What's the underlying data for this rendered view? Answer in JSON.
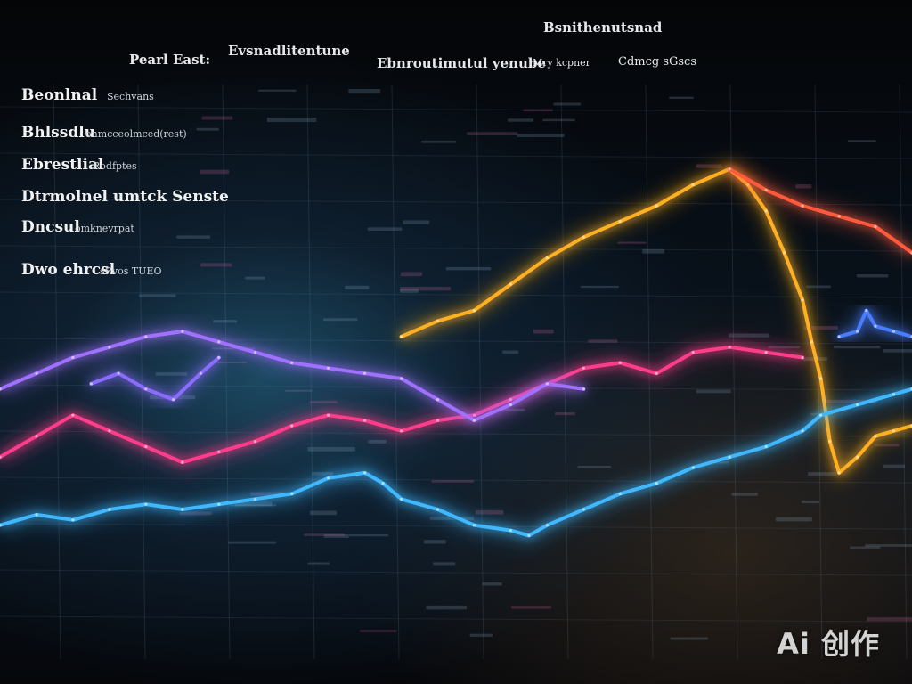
{
  "header": {
    "top_label": "Bsnithenutsnad",
    "left_title": "Pearl East:",
    "mid_title": "Evsnadlitentune",
    "subtitle": "Ebnroutimutul yenube",
    "subnote": "Mry kcpner",
    "right_note": "Cdmcg sGscs"
  },
  "row_labels": [
    {
      "main": "Beonlnal",
      "note": "Sechvans"
    },
    {
      "main": "Bhlssdlu",
      "note": "onmcceolmced(rest)"
    },
    {
      "main": "Ebrestlial",
      "note": "Rodfptes"
    },
    {
      "main": "Dtrmolnel umtck Senste",
      "note": ""
    },
    {
      "main": "Dncsul",
      "note": "omknevrpat"
    },
    {
      "main": "Dwo ehrcsl",
      "note": "sRvos TUEO"
    }
  ],
  "watermark": "Ai 创作",
  "chart_data": {
    "type": "line",
    "title": "",
    "xlabel": "",
    "ylabel": "",
    "xlim": [
      0,
      100
    ],
    "ylim": [
      0,
      100
    ],
    "grid": true,
    "legend": "none",
    "series": [
      {
        "color": "#ffb020",
        "values": [
          [
            44,
            50
          ],
          [
            48,
            53
          ],
          [
            52,
            55
          ],
          [
            56,
            60
          ],
          [
            60,
            65
          ],
          [
            64,
            69
          ],
          [
            68,
            72
          ],
          [
            72,
            75
          ],
          [
            76,
            79
          ],
          [
            80,
            82
          ],
          [
            82,
            79
          ],
          [
            84,
            74
          ],
          [
            86,
            66
          ],
          [
            88,
            57
          ],
          [
            89,
            49
          ],
          [
            90,
            42
          ],
          [
            91,
            30
          ],
          [
            92,
            24
          ],
          [
            94,
            27
          ],
          [
            96,
            31
          ],
          [
            98,
            32
          ],
          [
            100,
            33
          ]
        ]
      },
      {
        "color": "#ff5a3c",
        "values": [
          [
            80,
            82
          ],
          [
            84,
            78
          ],
          [
            88,
            75
          ],
          [
            92,
            73
          ],
          [
            96,
            71
          ],
          [
            100,
            66
          ]
        ]
      },
      {
        "color": "#ff3d8a",
        "values": [
          [
            0,
            27
          ],
          [
            4,
            31
          ],
          [
            8,
            35
          ],
          [
            12,
            32
          ],
          [
            16,
            29
          ],
          [
            20,
            26
          ],
          [
            24,
            28
          ],
          [
            28,
            30
          ],
          [
            32,
            33
          ],
          [
            36,
            35
          ],
          [
            40,
            34
          ],
          [
            44,
            32
          ],
          [
            48,
            34
          ],
          [
            52,
            35
          ],
          [
            56,
            38
          ],
          [
            60,
            41
          ],
          [
            64,
            44
          ],
          [
            68,
            45
          ],
          [
            72,
            43
          ],
          [
            76,
            47
          ],
          [
            80,
            48
          ],
          [
            84,
            47
          ],
          [
            88,
            46
          ]
        ]
      },
      {
        "color": "#a070ff",
        "values": [
          [
            0,
            40
          ],
          [
            4,
            43
          ],
          [
            8,
            46
          ],
          [
            12,
            48
          ],
          [
            16,
            50
          ],
          [
            20,
            51
          ],
          [
            24,
            49
          ],
          [
            28,
            47
          ],
          [
            32,
            45
          ],
          [
            36,
            44
          ],
          [
            40,
            43
          ],
          [
            44,
            42
          ],
          [
            48,
            38
          ],
          [
            52,
            34
          ],
          [
            56,
            37
          ],
          [
            60,
            41
          ],
          [
            64,
            40
          ]
        ]
      },
      {
        "color": "#8a6cff",
        "values": [
          [
            10,
            41
          ],
          [
            13,
            43
          ],
          [
            16,
            40
          ],
          [
            19,
            38
          ],
          [
            22,
            43
          ],
          [
            24,
            46
          ]
        ]
      },
      {
        "color": "#3fb8ff",
        "values": [
          [
            0,
            14
          ],
          [
            4,
            16
          ],
          [
            8,
            15
          ],
          [
            12,
            17
          ],
          [
            16,
            18
          ],
          [
            20,
            17
          ],
          [
            24,
            18
          ],
          [
            28,
            19
          ],
          [
            32,
            20
          ],
          [
            36,
            23
          ],
          [
            40,
            24
          ],
          [
            42,
            22
          ],
          [
            44,
            19
          ],
          [
            48,
            17
          ],
          [
            52,
            14
          ],
          [
            56,
            13
          ],
          [
            58,
            12
          ],
          [
            60,
            14
          ],
          [
            64,
            17
          ],
          [
            68,
            20
          ],
          [
            72,
            22
          ],
          [
            76,
            25
          ],
          [
            80,
            27
          ],
          [
            84,
            29
          ],
          [
            88,
            32
          ],
          [
            90,
            35
          ],
          [
            94,
            37
          ],
          [
            98,
            39
          ],
          [
            100,
            40
          ]
        ]
      },
      {
        "color": "#4a7dff",
        "values": [
          [
            92,
            50
          ],
          [
            94,
            51
          ],
          [
            95,
            55
          ],
          [
            96,
            52
          ],
          [
            98,
            51
          ],
          [
            100,
            50
          ]
        ]
      }
    ]
  }
}
